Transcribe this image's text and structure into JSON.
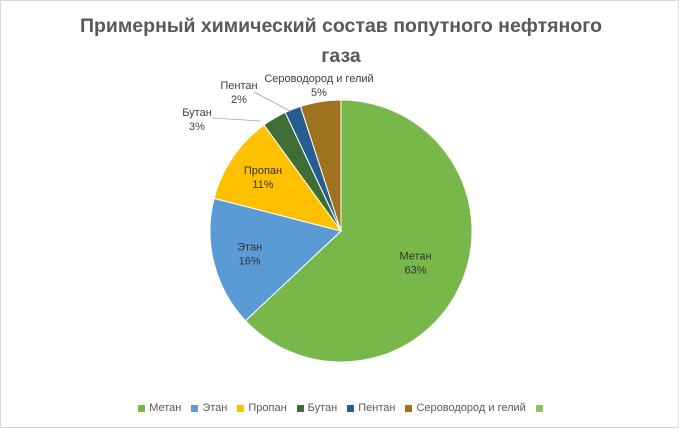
{
  "chart_data": {
    "type": "pie",
    "title": "Примерный химический состав попутного нефтяного газа",
    "title_lines": [
      "Примерный химический состав попутного нефтяного",
      "газа"
    ],
    "legend_position": "bottom",
    "slices": [
      {
        "name": "Метан",
        "value": 63,
        "label": "63%",
        "color": "#78B84A"
      },
      {
        "name": "Этан",
        "value": 16,
        "label": "16%",
        "color": "#5B9BD5"
      },
      {
        "name": "Пропан",
        "value": 11,
        "label": "11%",
        "color": "#FFC000"
      },
      {
        "name": "Бутан",
        "value": 3,
        "label": "3%",
        "color": "#3F6E35"
      },
      {
        "name": "Пентан",
        "value": 2,
        "label": "2%",
        "color": "#255E91"
      },
      {
        "name": "Сероводород и гелий",
        "value": 5,
        "label": "5%",
        "color": "#9E7320"
      }
    ],
    "extra_legend_entry": {
      "name": "",
      "color": "#8CC168"
    }
  }
}
